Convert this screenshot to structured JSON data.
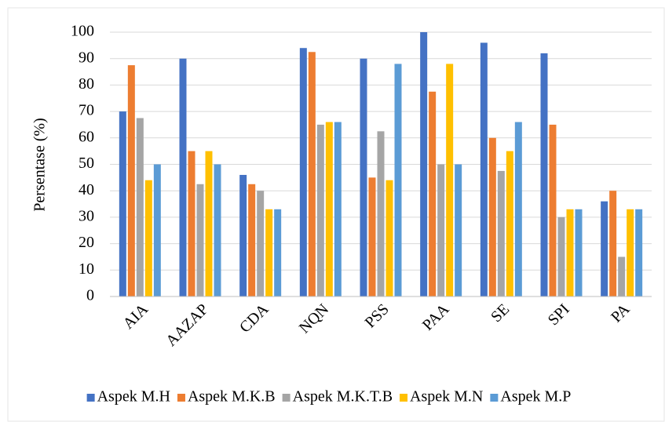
{
  "chart_data": {
    "type": "bar",
    "y_axis_label": "Persentase (%)",
    "categories": [
      "AIA",
      "AAZAP",
      "CDA",
      "NQN",
      "PSS",
      "PAA",
      "SE",
      "SPI",
      "PA"
    ],
    "series": [
      {
        "name": "Aspek M.H",
        "color": "#4472c4",
        "values": [
          70,
          90,
          46,
          94,
          90,
          100,
          96,
          92,
          36
        ]
      },
      {
        "name": "Aspek M.K.B",
        "color": "#ed7d31",
        "values": [
          87.5,
          55,
          42.5,
          92.5,
          45,
          77.5,
          60,
          65,
          40
        ]
      },
      {
        "name": "Aspek M.K.T.B",
        "color": "#a5a5a5",
        "values": [
          67.5,
          42.5,
          40,
          65,
          62.5,
          50,
          47.5,
          30,
          15
        ]
      },
      {
        "name": "Aspek M.N",
        "color": "#ffc000",
        "values": [
          44,
          55,
          33,
          66,
          44,
          88,
          55,
          33,
          33
        ]
      },
      {
        "name": "Aspek M.P",
        "color": "#5b9bd5",
        "values": [
          50,
          50,
          33,
          66,
          88,
          50,
          66,
          33,
          33
        ]
      }
    ],
    "ylim": [
      0,
      100
    ],
    "yticks": [
      0,
      10,
      20,
      30,
      40,
      50,
      60,
      70,
      80,
      90,
      100
    ],
    "grid": true,
    "legend": "bottom"
  }
}
